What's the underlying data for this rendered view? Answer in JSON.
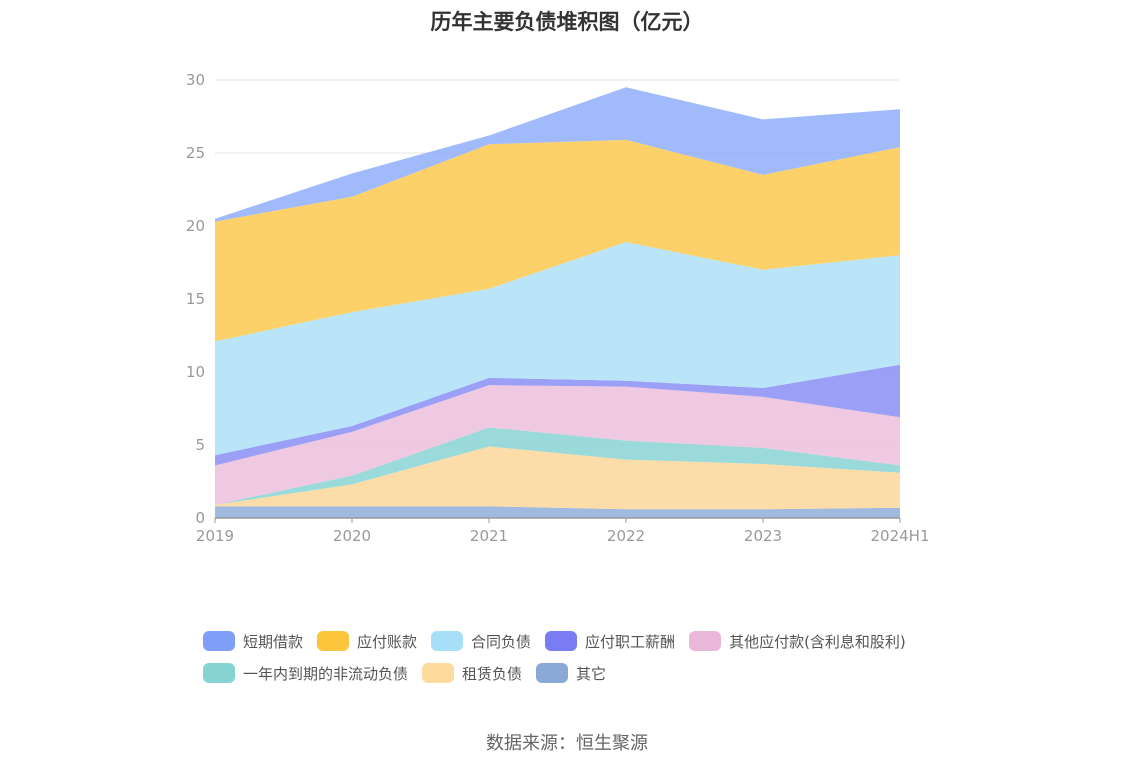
{
  "title": "历年主要负债堆积图（亿元）",
  "source": "数据来源：恒生聚源",
  "chart_data": {
    "type": "area",
    "stacked": true,
    "categories": [
      "2019",
      "2020",
      "2021",
      "2022",
      "2023",
      "2024H1"
    ],
    "ylim": [
      0,
      30
    ],
    "yticks": [
      0,
      5,
      10,
      15,
      20,
      25,
      30
    ],
    "grid": true,
    "legend_position": "bottom",
    "series": [
      {
        "name": "其它",
        "color": "#8eadd9",
        "values": [
          0.8,
          0.8,
          0.8,
          0.6,
          0.6,
          0.7
        ]
      },
      {
        "name": "租赁负债",
        "color": "#fcd79a",
        "values": [
          0.1,
          1.5,
          4.1,
          3.4,
          3.1,
          2.4
        ]
      },
      {
        "name": "一年内到期的非流动负债",
        "color": "#88d4d4",
        "values": [
          0.0,
          0.6,
          1.3,
          1.3,
          1.1,
          0.5
        ]
      },
      {
        "name": "其他应付款(含利息和股利)",
        "color": "#ebbfdc",
        "values": [
          2.7,
          3.0,
          2.9,
          3.7,
          3.5,
          3.3
        ]
      },
      {
        "name": "应付职工薪酬",
        "color": "#8a8ef5",
        "values": [
          0.7,
          0.4,
          0.5,
          0.4,
          0.6,
          3.6
        ]
      },
      {
        "name": "合同负债",
        "color": "#aee0f7",
        "values": [
          7.8,
          7.8,
          6.1,
          9.5,
          8.1,
          7.5
        ]
      },
      {
        "name": "应付账款",
        "color": "#fdc94f",
        "values": [
          8.2,
          7.9,
          9.9,
          7.0,
          6.5,
          7.4
        ]
      },
      {
        "name": "短期借款",
        "color": "#90aefa",
        "values": [
          0.2,
          1.6,
          0.6,
          3.6,
          3.8,
          2.6
        ]
      }
    ]
  },
  "legend_order": [
    {
      "name": "短期借款",
      "color": "#7f9ef7"
    },
    {
      "name": "应付账款",
      "color": "#fcc63c"
    },
    {
      "name": "合同负债",
      "color": "#a8dff8"
    },
    {
      "name": "应付职工薪酬",
      "color": "#7a7cf2"
    },
    {
      "name": "其他应付款(含利息和股利)",
      "color": "#e9b8d8"
    },
    {
      "name": "一年内到期的非流动负债",
      "color": "#86d3d3"
    },
    {
      "name": "租赁负债",
      "color": "#fddb9e"
    },
    {
      "name": "其它",
      "color": "#8ba9d6"
    }
  ]
}
